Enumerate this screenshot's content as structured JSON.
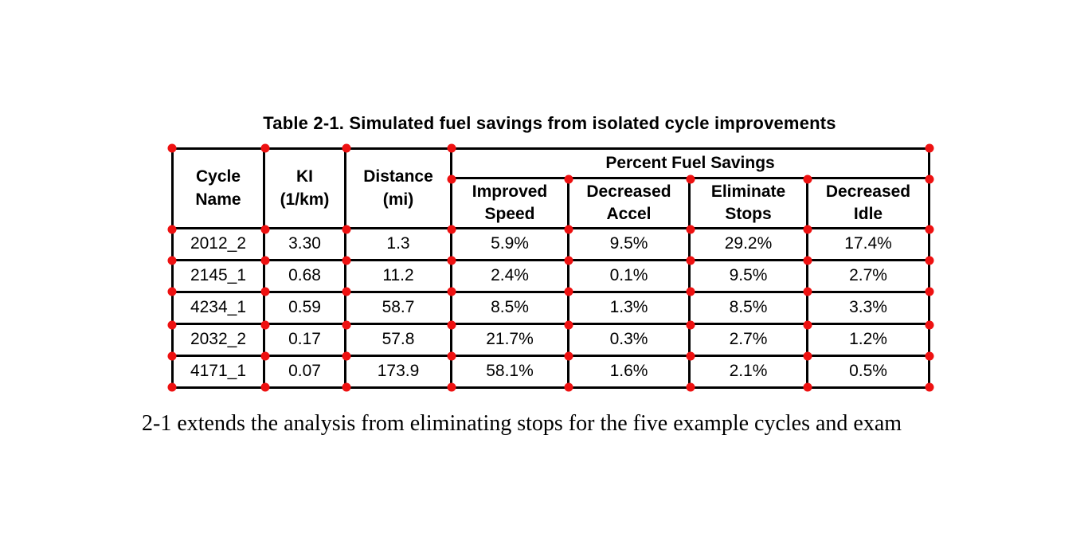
{
  "caption": "Table 2-1. Simulated fuel savings from isolated cycle improvements",
  "table": {
    "header": {
      "cycle_name": "Cycle\nName",
      "ki": "KI\n(1/km)",
      "distance": "Distance\n(mi)",
      "group": "Percent Fuel Savings",
      "sub": [
        "Improved\nSpeed",
        "Decreased\nAccel",
        "Eliminate\nStops",
        "Decreased\nIdle"
      ]
    },
    "rows": [
      [
        "2012_2",
        "3.30",
        "1.3",
        "5.9%",
        "9.5%",
        "29.2%",
        "17.4%"
      ],
      [
        "2145_1",
        "0.68",
        "11.2",
        "2.4%",
        "0.1%",
        "9.5%",
        "2.7%"
      ],
      [
        "4234_1",
        "0.59",
        "58.7",
        "8.5%",
        "1.3%",
        "8.5%",
        "3.3%"
      ],
      [
        "2032_2",
        "0.17",
        "57.8",
        "21.7%",
        "0.3%",
        "2.7%",
        "1.2%"
      ],
      [
        "4171_1",
        "0.07",
        "173.9",
        "58.1%",
        "1.6%",
        "2.1%",
        "0.5%"
      ]
    ]
  },
  "chart_data": {
    "type": "table",
    "title": "Table 2-1. Simulated fuel savings from isolated cycle improvements",
    "columns": [
      "Cycle Name",
      "KI (1/km)",
      "Distance (mi)",
      "Improved Speed",
      "Decreased Accel",
      "Eliminate Stops",
      "Decreased Idle"
    ],
    "group_header": "Percent Fuel Savings",
    "rows": [
      [
        "2012_2",
        3.3,
        1.3,
        "5.9%",
        "9.5%",
        "29.2%",
        "17.4%"
      ],
      [
        "2145_1",
        0.68,
        11.2,
        "2.4%",
        "0.1%",
        "9.5%",
        "2.7%"
      ],
      [
        "4234_1",
        0.59,
        58.7,
        "8.5%",
        "1.3%",
        "8.5%",
        "3.3%"
      ],
      [
        "2032_2",
        0.17,
        57.8,
        "21.7%",
        "0.3%",
        "2.7%",
        "1.2%"
      ],
      [
        "4171_1",
        0.07,
        173.9,
        "58.1%",
        "1.6%",
        "2.1%",
        "0.5%"
      ]
    ]
  },
  "body": {
    "partial_char": "e",
    "text": "2-1 extends the analysis from eliminating stops for the five example cycles and exam"
  },
  "annotation": {
    "dot_color": "#ee1111"
  }
}
